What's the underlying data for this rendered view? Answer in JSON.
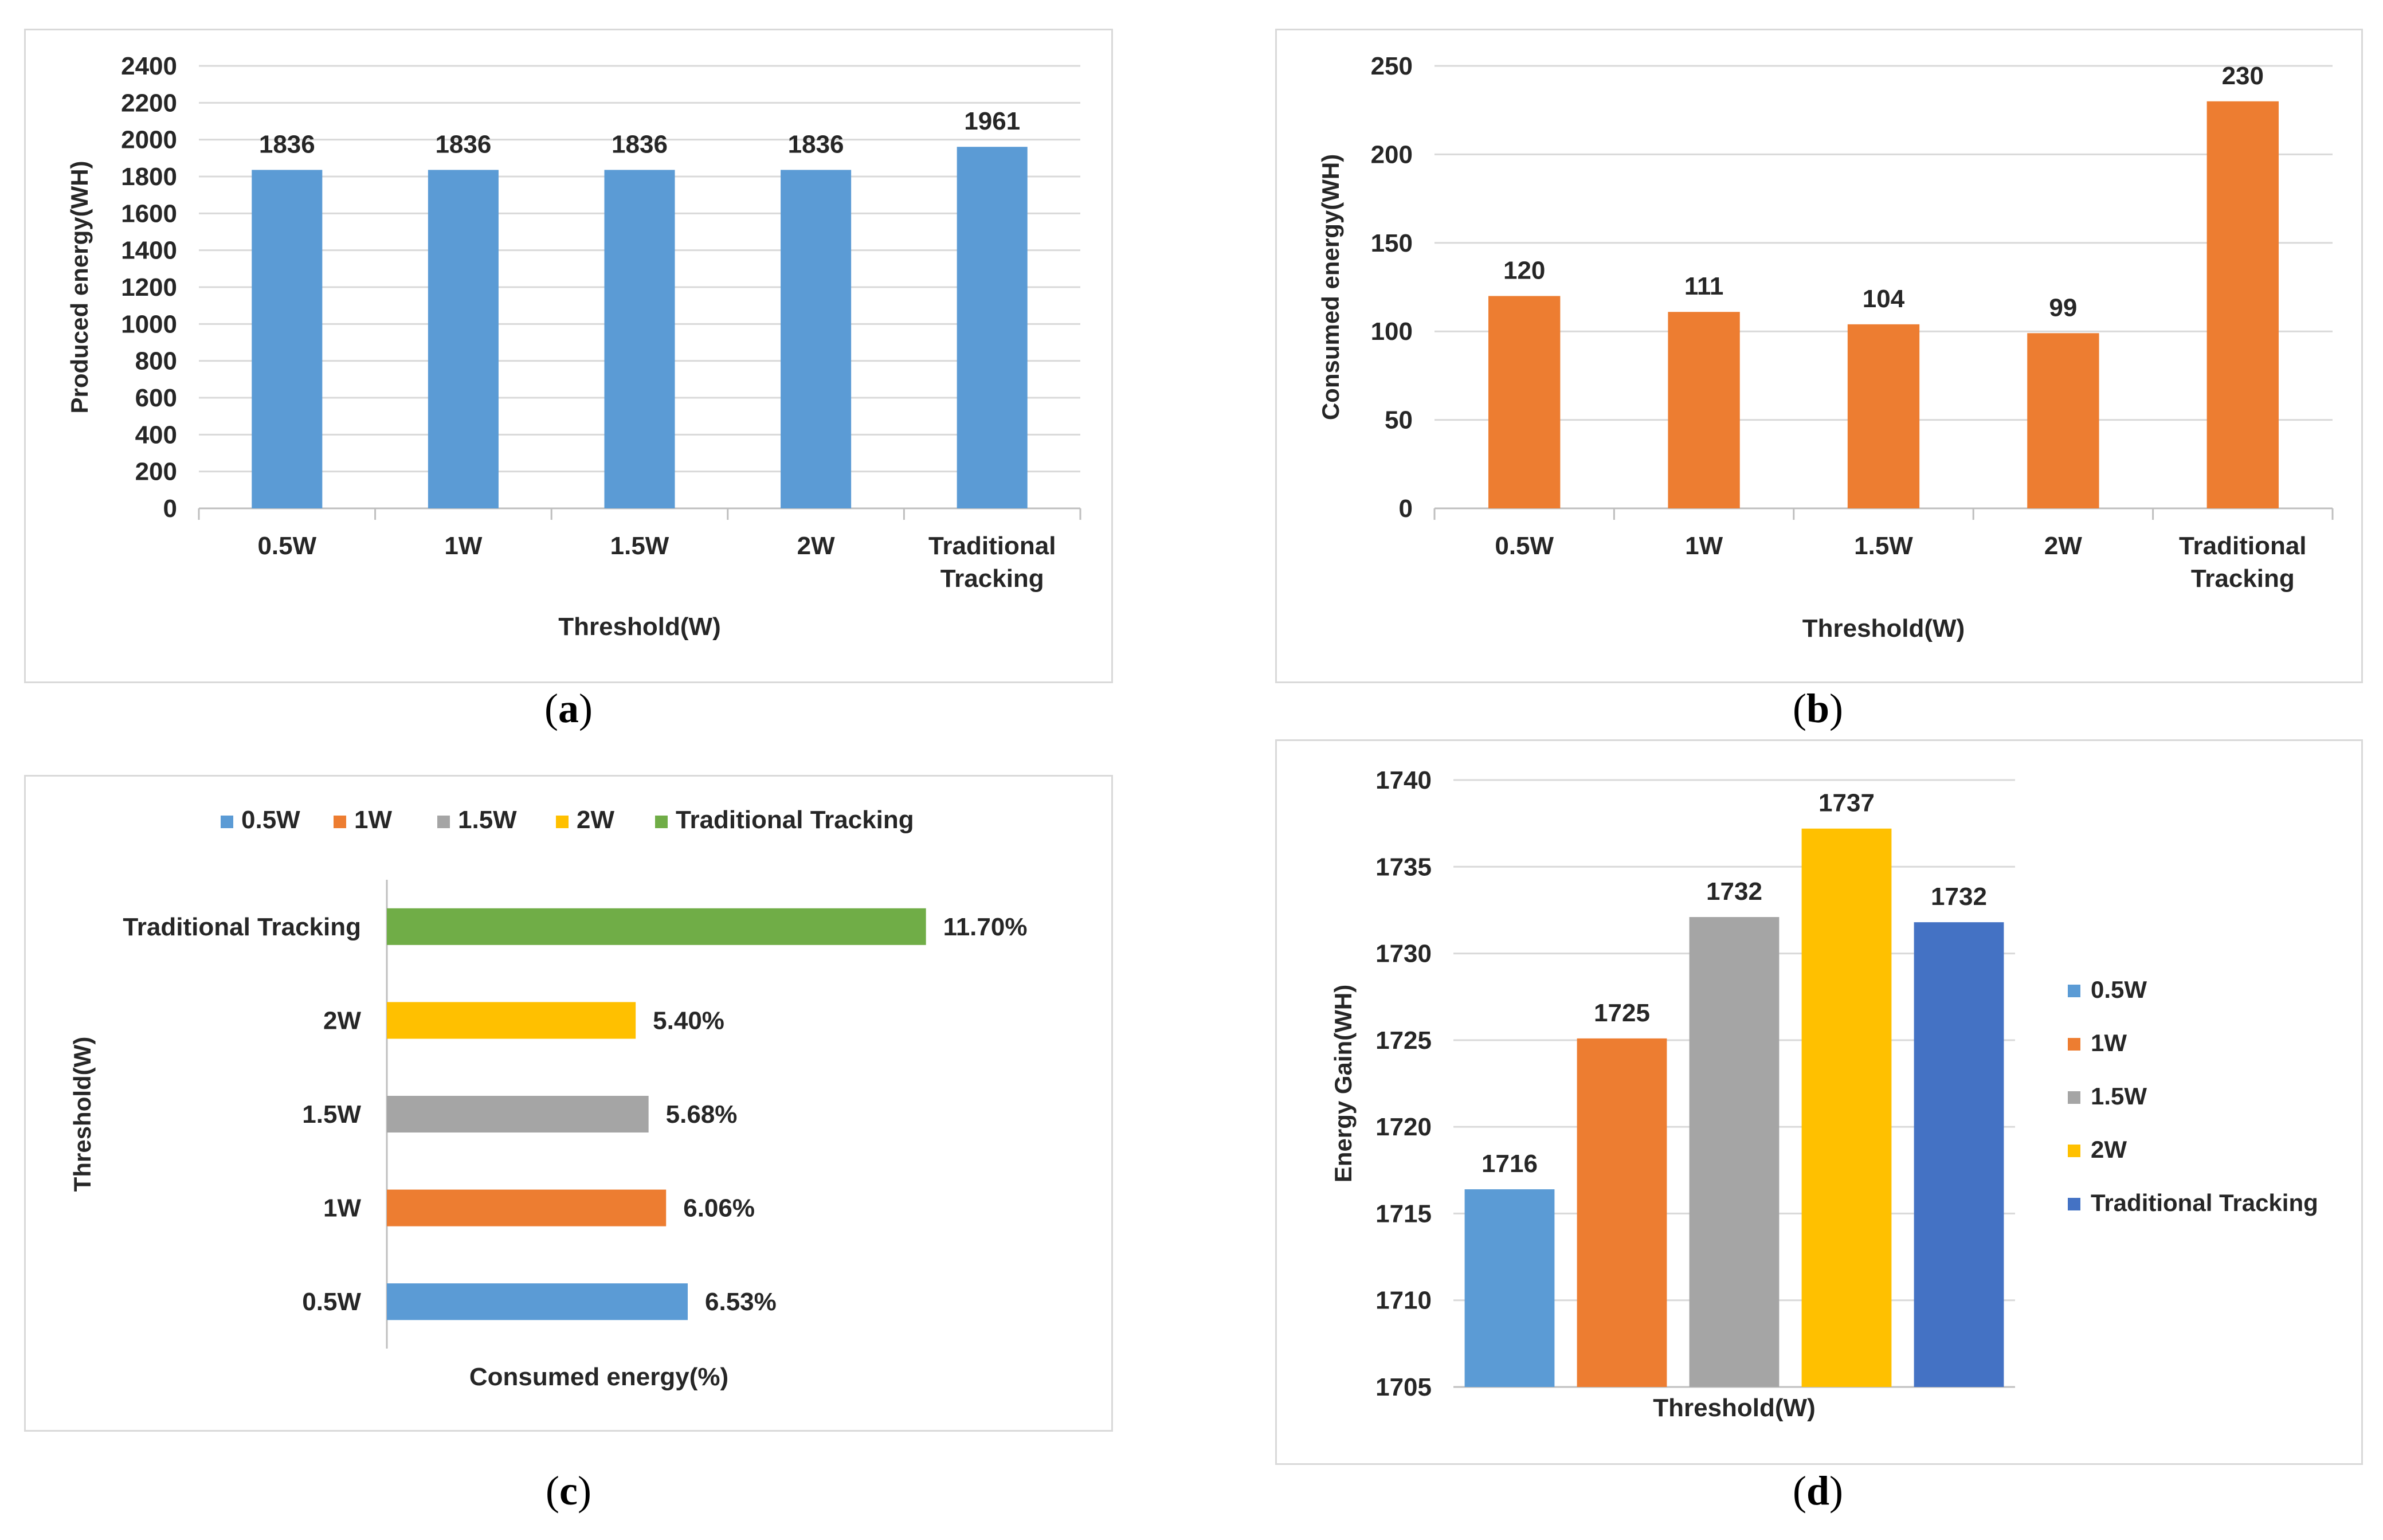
{
  "captions": {
    "a": {
      "open": "(",
      "letter": "a",
      "close": ")"
    },
    "b": {
      "open": "(",
      "letter": "b",
      "close": ")"
    },
    "c": {
      "open": "(",
      "letter": "c",
      "close": ")"
    },
    "d": {
      "open": "(",
      "letter": "d",
      "close": ")"
    }
  },
  "chart_data": [
    {
      "id": "a",
      "type": "bar",
      "categories": [
        "0.5W",
        "1W",
        "1.5W",
        "2W",
        "Traditional Tracking"
      ],
      "values": [
        1836,
        1836,
        1836,
        1836,
        1961
      ],
      "data_labels": [
        "1836",
        "1836",
        "1836",
        "1836",
        "1961"
      ],
      "xlabel": "Threshold(W)",
      "ylabel": "Produced energy(WH)",
      "ylim": [
        0,
        2400
      ],
      "yticks": [
        0,
        200,
        400,
        600,
        800,
        1000,
        1200,
        1400,
        1600,
        1800,
        2000,
        2200,
        2400
      ],
      "grid": true,
      "color": "#5b9bd5"
    },
    {
      "id": "b",
      "type": "bar",
      "categories": [
        "0.5W",
        "1W",
        "1.5W",
        "2W",
        "Traditional Tracking"
      ],
      "values": [
        120,
        111,
        104,
        99,
        230
      ],
      "data_labels": [
        "120",
        "111",
        "104",
        "99",
        "230"
      ],
      "xlabel": "Threshold(W)",
      "ylabel": "Consumed energy(WH)",
      "ylim": [
        0,
        250
      ],
      "yticks": [
        0,
        50,
        100,
        150,
        200,
        250
      ],
      "grid": true,
      "color": "#ed7d31"
    },
    {
      "id": "c",
      "type": "bar",
      "orientation": "horizontal",
      "categories": [
        "0.5W",
        "1W",
        "1.5W",
        "2W",
        "Traditional Tracking"
      ],
      "values": [
        6.53,
        6.06,
        5.68,
        5.4,
        11.7
      ],
      "data_labels": [
        "6.53%",
        "6.06%",
        "5.68%",
        "5.40%",
        "11.70%"
      ],
      "xlabel": "Consumed energy(%)",
      "ylabel": "Threshold(W)",
      "xlim": [
        0,
        12.5
      ],
      "legend": [
        "0.5W",
        "1W",
        "1.5W",
        "2W",
        "Traditional Tracking"
      ],
      "legend_position": "top",
      "grid": false,
      "colors": [
        "#5b9bd5",
        "#ed7d31",
        "#a5a5a5",
        "#ffc000",
        "#70ad47"
      ]
    },
    {
      "id": "d",
      "type": "bar",
      "categories": [
        "0.5W",
        "1W",
        "1.5W",
        "2W",
        "Traditional Tracking"
      ],
      "values": [
        1716.4,
        1725.1,
        1732.1,
        1737.2,
        1731.8
      ],
      "data_labels": [
        "1716",
        "1725",
        "1732",
        "1737",
        "1732"
      ],
      "xlabel": "Threshold(W)",
      "ylabel": "Energy Gain(WH)",
      "ylim": [
        1705,
        1740
      ],
      "yticks": [
        1705,
        1710,
        1715,
        1720,
        1725,
        1730,
        1735,
        1740
      ],
      "grid": true,
      "legend": [
        "0.5W",
        "1W",
        "1.5W",
        "2W",
        "Traditional Tracking"
      ],
      "legend_position": "right",
      "colors": [
        "#5b9bd5",
        "#ed7d31",
        "#a5a5a5",
        "#ffc000",
        "#4472c4"
      ]
    }
  ]
}
